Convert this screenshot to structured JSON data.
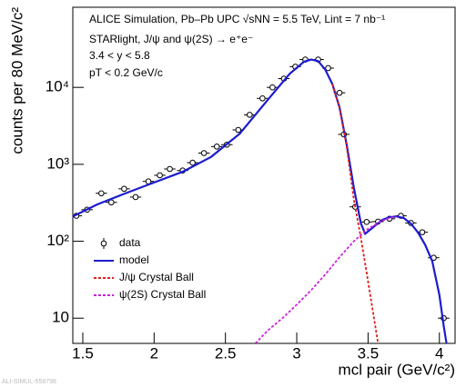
{
  "chart_data": {
    "type": "scatter",
    "annotations": [
      "ALICE Simulation, Pb–Pb UPC √sNN = 5.5 TeV, Lint = 7 nb⁻¹",
      "STARlight, J/ψ and ψ(2S) → e⁺e⁻",
      "3.4 < y < 5.8",
      "pT < 0.2 GeV/c"
    ],
    "x_label": "mcl pair (GeV/c²)",
    "y_label": "counts per 80 MeV/c²",
    "watermark": "ALI-SIMUL-558798",
    "xlim": [
      1.43,
      4.11
    ],
    "xticks": [
      1.5,
      2,
      2.5,
      3,
      3.5,
      4
    ],
    "ylim": [
      4.7,
      110000
    ],
    "yticks": [
      10,
      {
        "value": 100,
        "label": "10²"
      },
      {
        "value": 1000,
        "label": "10³"
      },
      {
        "value": 10000,
        "label": "10⁴"
      }
    ],
    "log_y": true,
    "x_error": 0.04,
    "series": [
      {
        "name": "data",
        "color": "#000000",
        "style": "points",
        "x": [
          1.455,
          1.53,
          1.63,
          1.7,
          1.79,
          1.87,
          1.96,
          2.04,
          2.11,
          2.2,
          2.27,
          2.35,
          2.44,
          2.51,
          2.59,
          2.67,
          2.76,
          2.83,
          2.91,
          2.99,
          3.06,
          3.15,
          3.22,
          3.3,
          3.33,
          3.41,
          3.49,
          3.57,
          3.65,
          3.73,
          3.8,
          3.88,
          3.96,
          4.03
        ],
        "values": [
          214,
          257,
          420,
          320,
          480,
          375,
          600,
          720,
          870,
          830,
          1050,
          1400,
          1700,
          1800,
          2800,
          4400,
          7200,
          10000,
          13000,
          18600,
          23000,
          23000,
          17800,
          8500,
          2450,
          280,
          178,
          180,
          196,
          214,
          173,
          131,
          61,
          10
        ]
      },
      {
        "name": "model",
        "color": "#1c1cd0",
        "style": "line",
        "x": [
          1.43,
          1.6,
          1.8,
          2.0,
          2.2,
          2.4,
          2.6,
          2.8,
          2.95,
          3.05,
          3.1,
          3.15,
          3.2,
          3.25,
          3.3,
          3.35,
          3.4,
          3.45,
          3.48,
          3.55,
          3.6,
          3.65,
          3.7,
          3.75,
          3.8,
          3.85,
          3.9,
          3.95,
          4.0,
          4.03,
          4.05
        ],
        "values": [
          210,
          300,
          420,
          580,
          800,
          1250,
          2500,
          7000,
          15000,
          21500,
          23000,
          22000,
          17000,
          11000,
          5500,
          1800,
          500,
          170,
          125,
          160,
          190,
          205,
          210,
          200,
          170,
          130,
          90,
          55,
          20,
          8,
          4.7
        ]
      },
      {
        "name": "J/ψ Crystal Ball",
        "color": "#e0201c",
        "style": "dashed",
        "x": [
          3.25,
          3.3,
          3.35,
          3.4,
          3.45,
          3.5,
          3.55,
          3.57
        ],
        "values": [
          11000,
          5400,
          1700,
          350,
          110,
          30,
          8,
          4.7
        ]
      },
      {
        "name": "ψ(2S) Crystal Ball",
        "color": "#cc22dd",
        "style": "dashed",
        "x": [
          2.71,
          2.8,
          2.9,
          3.0,
          3.1,
          3.2,
          3.3,
          3.4,
          3.5,
          3.6,
          3.65,
          3.7
        ],
        "values": [
          4.7,
          7,
          10,
          15,
          23,
          37,
          62,
          100,
          145,
          185,
          200,
          208
        ]
      }
    ]
  }
}
